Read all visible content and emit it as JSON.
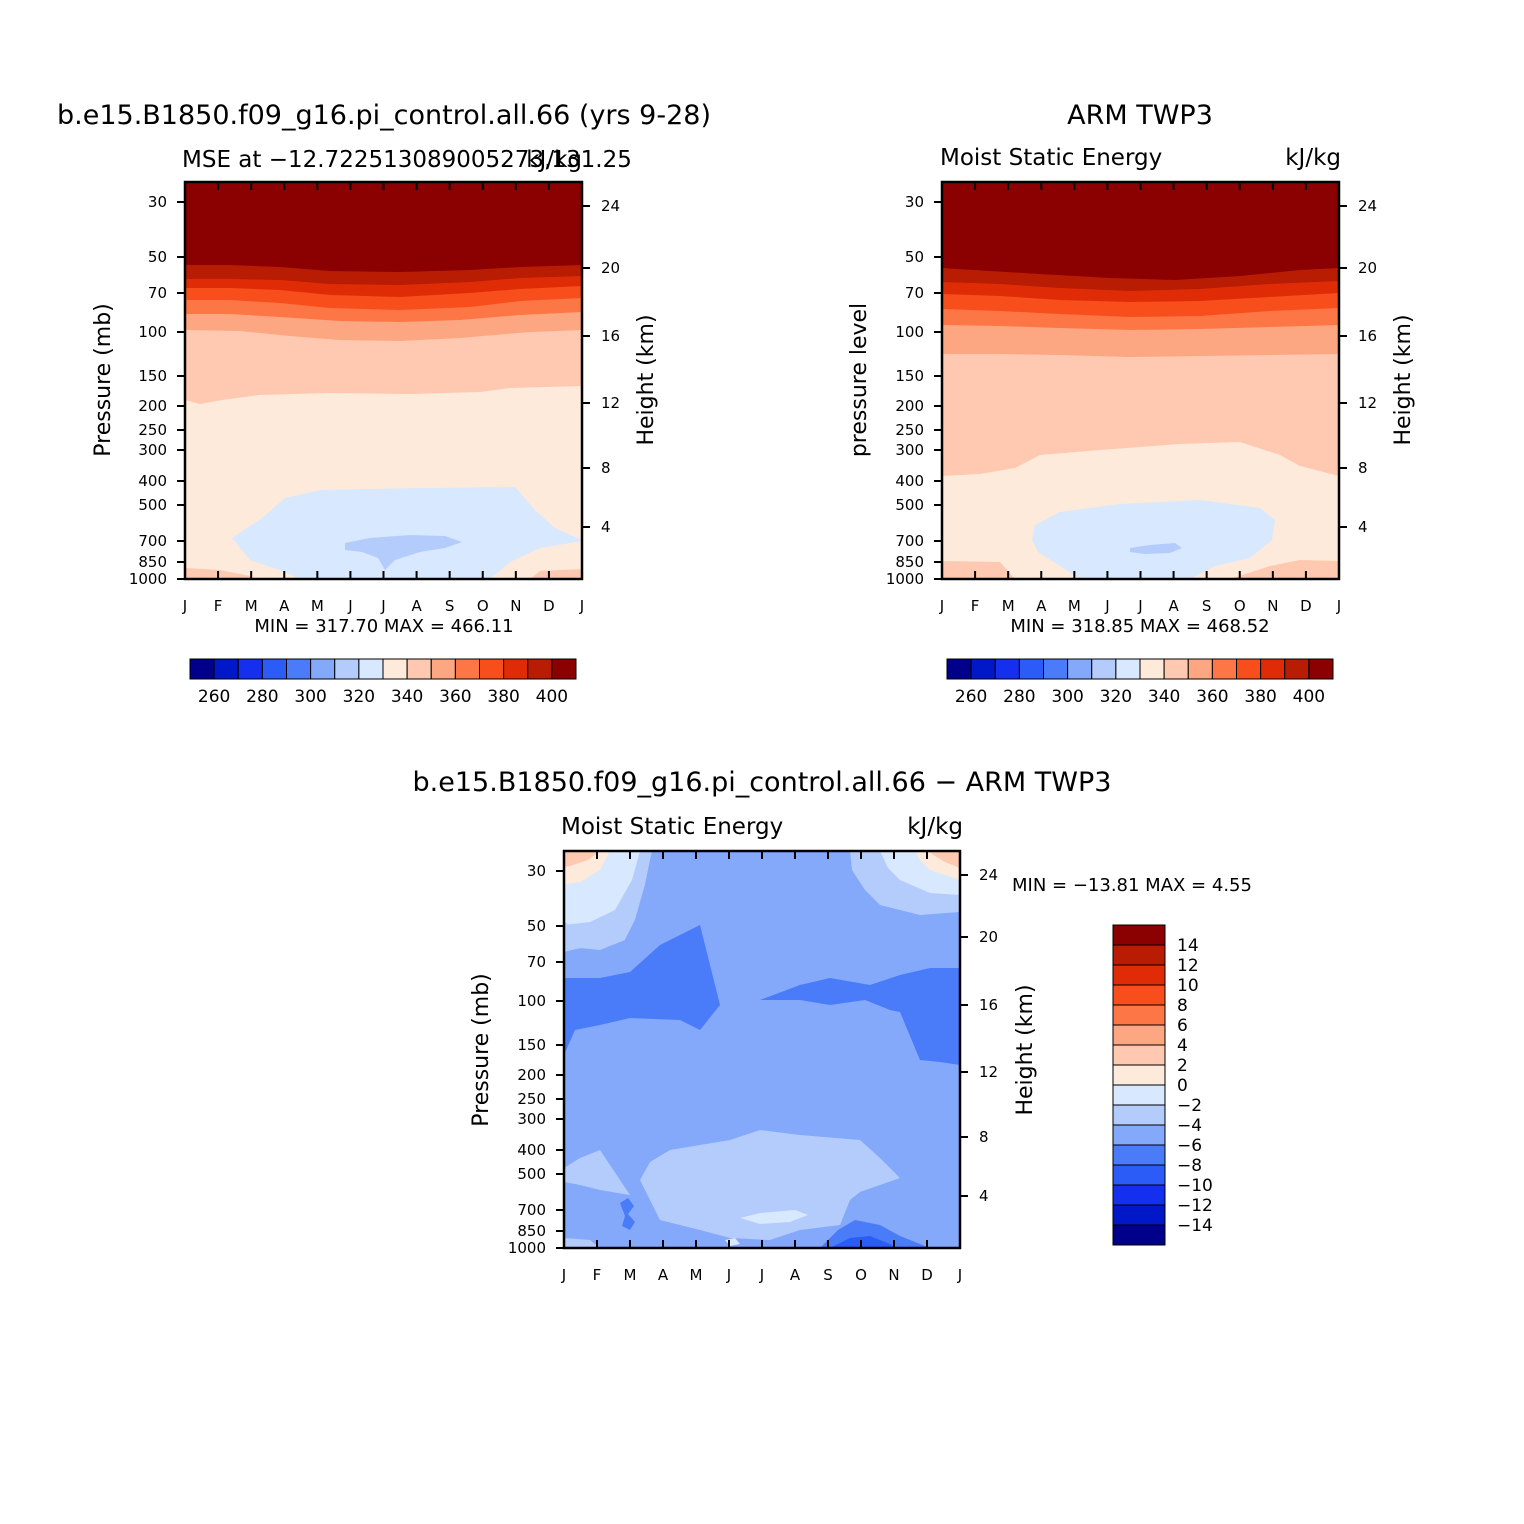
{
  "palette": [
    "#00008b",
    "#0018c8",
    "#1430ee",
    "#2c5cf8",
    "#4a7cfa",
    "#84a8fa",
    "#b4ccfc",
    "#d8e8fe",
    "#feeada",
    "#fec9b0",
    "#fda682",
    "#fd7646",
    "#f84e1c",
    "#e02c06",
    "#b81c02",
    "#8b0000"
  ],
  "chart_data": [
    {
      "type": "heatmap",
      "title": "b.e15.B1850.f09_g16.pi_control.all.66 (yrs 9-28)",
      "subtitle_left": "MSE at −12.722513089005273,131.25",
      "subtitle_right": "kJ/kg",
      "ylabel_left": "Pressure (mb)",
      "ylabel_right": "Height (km)",
      "x_ticks": [
        "J",
        "F",
        "M",
        "A",
        "M",
        "J",
        "J",
        "A",
        "S",
        "O",
        "N",
        "D",
        "J"
      ],
      "y_ticks_pressure": [
        "30",
        "50",
        "70",
        "100",
        "150",
        "200",
        "250",
        "300",
        "400",
        "500",
        "700",
        "850",
        "1000"
      ],
      "y_ticks_height": [
        "24",
        "20",
        "16",
        "12",
        "8",
        "4"
      ],
      "stats": "MIN = 317.70 MAX = 466.11",
      "min": 317.7,
      "max": 466.11,
      "colorbar_labels": [
        "260",
        "280",
        "300",
        "320",
        "340",
        "360",
        "380",
        "400"
      ],
      "colorbar_levels": [
        250,
        260,
        270,
        280,
        290,
        300,
        310,
        320,
        330,
        340,
        350,
        360,
        370,
        380,
        390,
        400
      ]
    },
    {
      "type": "heatmap",
      "title": "ARM TWP3",
      "subtitle_left": "Moist Static Energy",
      "subtitle_right": "kJ/kg",
      "ylabel_left": "pressure level",
      "ylabel_right": "Height (km)",
      "x_ticks": [
        "J",
        "F",
        "M",
        "A",
        "M",
        "J",
        "J",
        "A",
        "S",
        "O",
        "N",
        "D",
        "J"
      ],
      "y_ticks_pressure": [
        "30",
        "50",
        "70",
        "100",
        "150",
        "200",
        "250",
        "300",
        "400",
        "500",
        "700",
        "850",
        "1000"
      ],
      "y_ticks_height": [
        "24",
        "20",
        "16",
        "12",
        "8",
        "4"
      ],
      "stats": "MIN = 318.85 MAX = 468.52",
      "min": 318.85,
      "max": 468.52,
      "colorbar_labels": [
        "260",
        "280",
        "300",
        "320",
        "340",
        "360",
        "380",
        "400"
      ],
      "colorbar_levels": [
        250,
        260,
        270,
        280,
        290,
        300,
        310,
        320,
        330,
        340,
        350,
        360,
        370,
        380,
        390,
        400
      ]
    },
    {
      "type": "heatmap",
      "title": "b.e15.B1850.f09_g16.pi_control.all.66 − ARM TWP3",
      "subtitle_left": "Moist Static Energy",
      "subtitle_right": "kJ/kg",
      "ylabel_left": "Pressure (mb)",
      "ylabel_right": "Height (km)",
      "x_ticks": [
        "J",
        "F",
        "M",
        "A",
        "M",
        "J",
        "J",
        "A",
        "S",
        "O",
        "N",
        "D",
        "J"
      ],
      "y_ticks_pressure": [
        "30",
        "50",
        "70",
        "100",
        "150",
        "200",
        "250",
        "300",
        "400",
        "500",
        "700",
        "850",
        "1000"
      ],
      "y_ticks_height": [
        "24",
        "20",
        "16",
        "12",
        "8",
        "4"
      ],
      "stats": "MIN = −13.81 MAX =    4.55",
      "min": -13.81,
      "max": 4.55,
      "colorbar_labels": [
        "14",
        "12",
        "10",
        "8",
        "6",
        "4",
        "2",
        "0",
        "−2",
        "−4",
        "−6",
        "−8",
        "−10",
        "−12",
        "−14"
      ],
      "colorbar_levels": [
        -14,
        -12,
        -10,
        -8,
        -6,
        -4,
        -2,
        0,
        2,
        4,
        6,
        8,
        10,
        12,
        14
      ]
    }
  ]
}
